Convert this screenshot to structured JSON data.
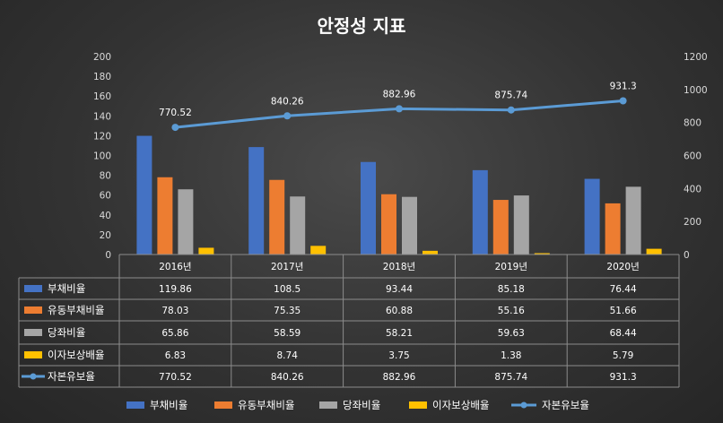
{
  "chart_data": {
    "type": "bar",
    "title": "안정성 지표",
    "categories": [
      "2016년",
      "2017년",
      "2018년",
      "2019년",
      "2020년"
    ],
    "series": [
      {
        "name": "부채비율",
        "kind": "bar",
        "axis": "left",
        "color": "#4472C4",
        "values": [
          119.86,
          108.5,
          93.44,
          85.18,
          76.44
        ],
        "display": [
          "119.86",
          "108.5",
          "93.44",
          "85.18",
          "76.44"
        ]
      },
      {
        "name": "유동부채비율",
        "kind": "bar",
        "axis": "left",
        "color": "#ED7D31",
        "values": [
          78.03,
          75.35,
          60.88,
          55.16,
          51.66
        ],
        "display": [
          "78.03",
          "75.35",
          "60.88",
          "55.16",
          "51.66"
        ]
      },
      {
        "name": "당좌비율",
        "kind": "bar",
        "axis": "left",
        "color": "#A5A5A5",
        "values": [
          65.86,
          58.59,
          58.21,
          59.63,
          68.44
        ],
        "display": [
          "65.86",
          "58.59",
          "58.21",
          "59.63",
          "68.44"
        ]
      },
      {
        "name": "이자보상배율",
        "kind": "bar",
        "axis": "left",
        "color": "#FFC000",
        "values": [
          6.83,
          8.74,
          3.75,
          1.38,
          5.79
        ],
        "display": [
          "6.83",
          "8.74",
          "3.75",
          "1.38",
          "5.79"
        ]
      },
      {
        "name": "자본유보율",
        "kind": "line",
        "axis": "right",
        "color": "#5B9BD5",
        "values": [
          770.52,
          840.26,
          882.96,
          875.74,
          931.3
        ],
        "display": [
          "770.52",
          "840.26",
          "882.96",
          "875.74",
          "931.3"
        ]
      }
    ],
    "y_left": {
      "min": 0,
      "max": 200,
      "step": 20,
      "ticks": [
        "0",
        "20",
        "40",
        "60",
        "80",
        "100",
        "120",
        "140",
        "160",
        "180",
        "200"
      ]
    },
    "y_right": {
      "min": 0,
      "max": 1200,
      "step": 200,
      "ticks": [
        "0",
        "200",
        "400",
        "600",
        "800",
        "1000",
        "1200"
      ]
    },
    "data_table": true,
    "legend_position": "bottom"
  }
}
